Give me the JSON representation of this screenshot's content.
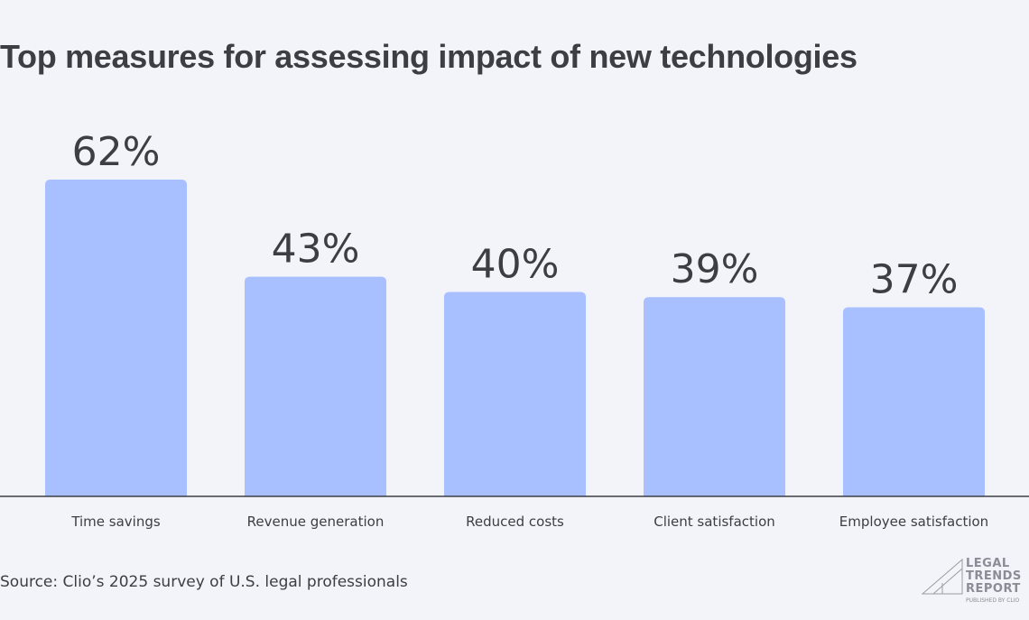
{
  "chart_data": {
    "type": "bar",
    "title": "Top measures for assessing impact of new technologies",
    "categories": [
      "Time savings",
      "Revenue generation",
      "Reduced costs",
      "Client satisfaction",
      "Employee satisfaction"
    ],
    "values": [
      62,
      43,
      40,
      39,
      37
    ],
    "value_labels": [
      "62%",
      "43%",
      "40%",
      "39%",
      "37%"
    ],
    "unit": "%",
    "ylim": [
      0,
      62
    ],
    "grid": false,
    "bar_color": "#a8c0ff"
  },
  "source": "Source: Clio’s 2025 survey of U.S. legal professionals",
  "logo": {
    "line1": "LEGAL",
    "line2": "TRENDS",
    "line3": "REPORT",
    "published": "PUBLISHED BY CLIO"
  }
}
